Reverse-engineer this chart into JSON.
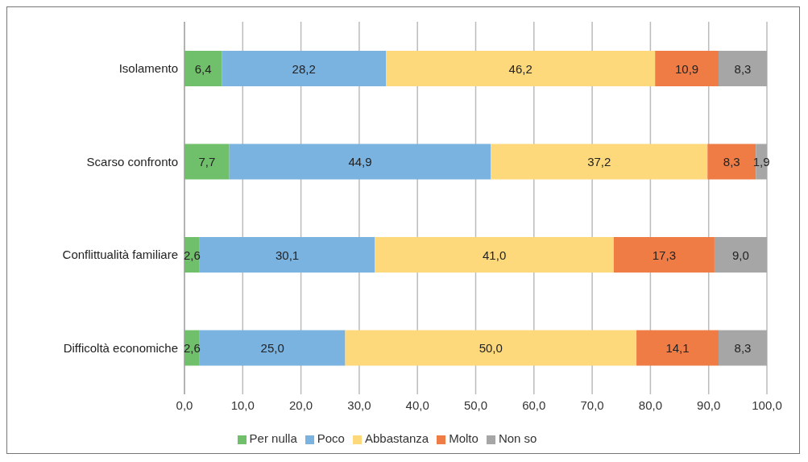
{
  "chart_data": {
    "type": "bar",
    "orientation": "horizontal",
    "stacked": true,
    "categories": [
      "Isolamento",
      "Scarso confronto",
      "Conflittualità familiare",
      "Difficoltà economiche"
    ],
    "series": [
      {
        "name": "Per nulla",
        "color": "#70bf6b",
        "values": [
          6.4,
          7.7,
          2.6,
          2.6
        ],
        "value_labels": [
          "6,4",
          "7,7",
          "2,6",
          "2,6"
        ]
      },
      {
        "name": "Poco",
        "color": "#7ab2e0",
        "values": [
          28.2,
          44.9,
          30.1,
          25.0
        ],
        "value_labels": [
          "28,2",
          "44,9",
          "30,1",
          "25,0"
        ]
      },
      {
        "name": "Abbastanza",
        "color": "#fdd97c",
        "values": [
          46.2,
          37.2,
          41.0,
          50.0
        ],
        "value_labels": [
          "46,2",
          "37,2",
          "41,0",
          "50,0"
        ]
      },
      {
        "name": "Molto",
        "color": "#f07c45",
        "values": [
          10.9,
          8.3,
          17.3,
          14.1
        ],
        "value_labels": [
          "10,9",
          "8,3",
          "17,3",
          "14,1"
        ]
      },
      {
        "name": "Non so",
        "color": "#a6a6a6",
        "values": [
          8.3,
          1.9,
          9.0,
          8.3
        ],
        "value_labels": [
          "8,3",
          "1,9",
          "9,0",
          "8,3"
        ]
      }
    ],
    "xlim": [
      0,
      100
    ],
    "xticks": [
      {
        "value": 0,
        "label": "0,0"
      },
      {
        "value": 10,
        "label": "10,0"
      },
      {
        "value": 20,
        "label": "20,0"
      },
      {
        "value": 30,
        "label": "30,0"
      },
      {
        "value": 40,
        "label": "40,0"
      },
      {
        "value": 50,
        "label": "50,0"
      },
      {
        "value": 60,
        "label": "60,0"
      },
      {
        "value": 70,
        "label": "70,0"
      },
      {
        "value": 80,
        "label": "80,0"
      },
      {
        "value": 90,
        "label": "90,0"
      },
      {
        "value": 100,
        "label": "100,0"
      }
    ],
    "grid": "x",
    "legend": "bottom"
  }
}
